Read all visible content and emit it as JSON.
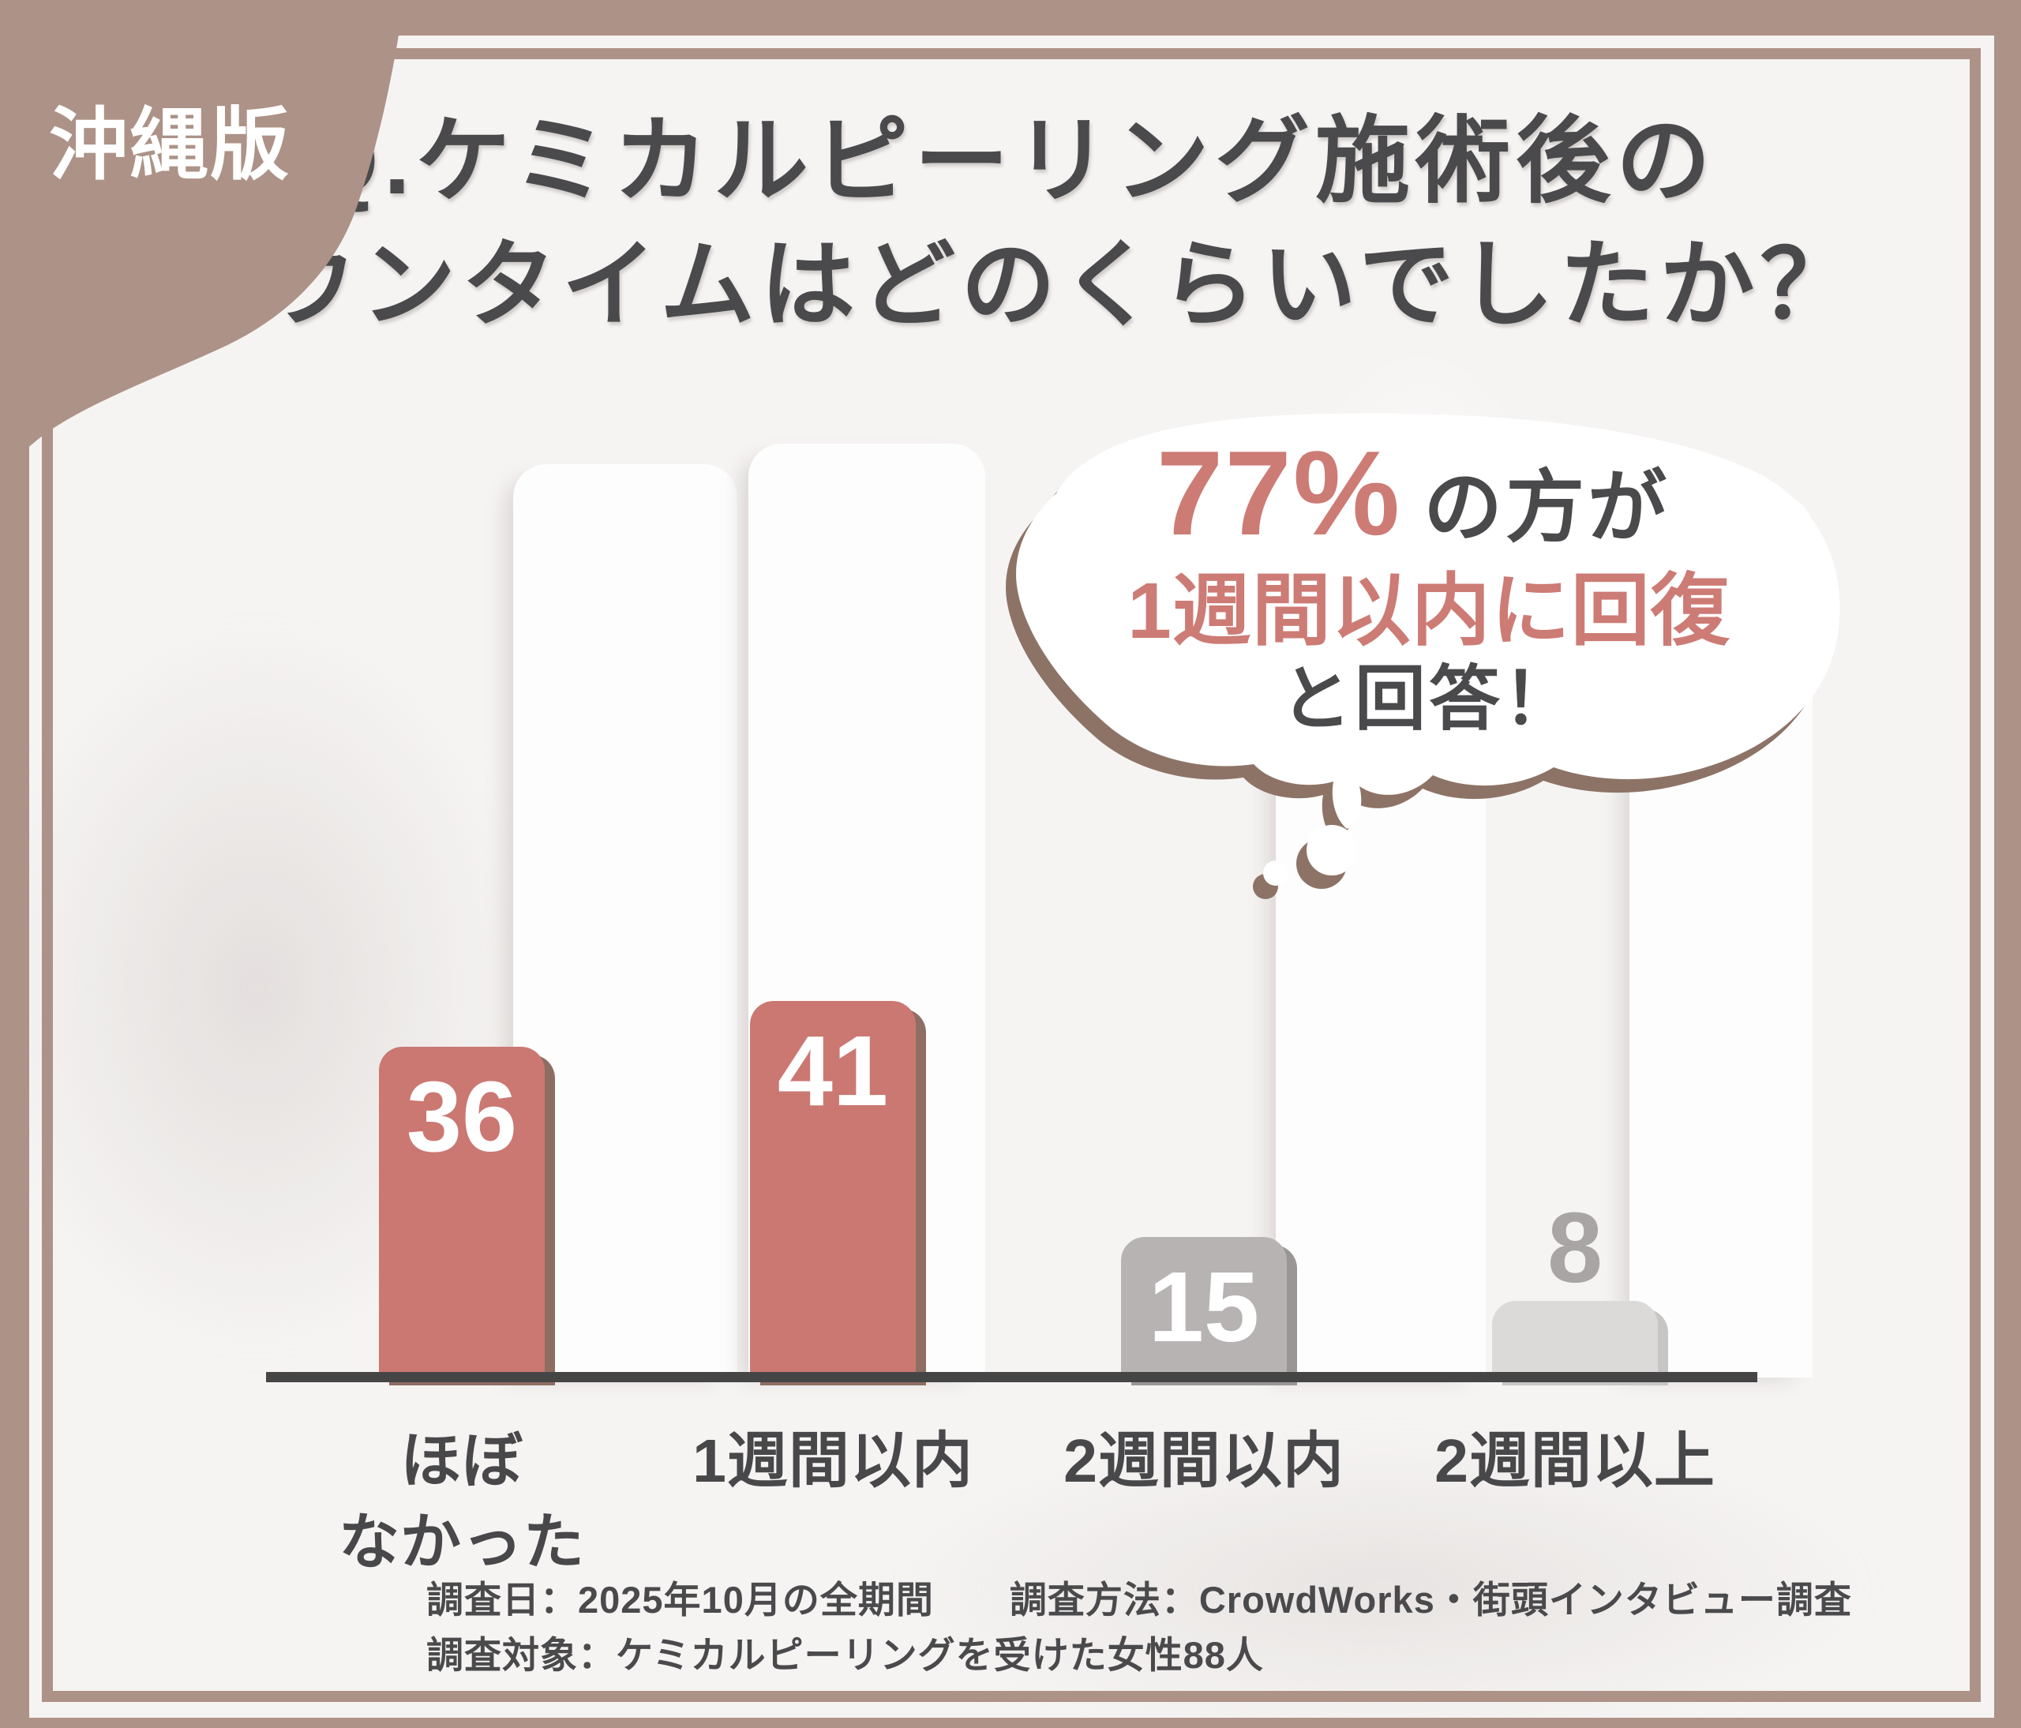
{
  "badge": {
    "label": "沖縄版"
  },
  "title": {
    "line1": "Q.ケミカルピーリング施術後の",
    "line2": "ダウンタイムはどのくらいでしたか？"
  },
  "bubble": {
    "stat": "77%",
    "stat_suffix": "の方が",
    "highlight_line": "1週間以内に回復",
    "answer_line": "と回答！"
  },
  "chart_data": {
    "type": "bar",
    "title": "Q.ケミカルピーリング施術後のダウンタイムはどのくらいでしたか？",
    "categories": [
      "ほぼ\nなかった",
      "1週間以内",
      "2週間以内",
      "2週間以上"
    ],
    "values": [
      36,
      41,
      15,
      8
    ],
    "xlabel": "",
    "ylabel": "",
    "ylim": [
      0,
      45
    ],
    "grid": false,
    "legend": "none",
    "annotation": "77%の方が1週間以内に回復と回答！",
    "bar_colors": [
      "#cb7872",
      "#cb7872",
      "#b7b3b3",
      "#dcd9d9"
    ],
    "bar_shadow_colors": [
      "#8e6d62",
      "#8e6d62",
      "#9b9696",
      "#c8c5c5"
    ],
    "value_label_colors": [
      "#ffffff",
      "#ffffff",
      "#ffffff",
      "#a9a5a5"
    ],
    "value_label_position": [
      "inside",
      "inside",
      "inside",
      "outside"
    ]
  },
  "footer": {
    "line1": "調査日：2025年10月の全期間　　調査方法：CrowdWorks・街頭インタビュー調査",
    "line2": "調査対象：ケミカルピーリングを受けた女性88人"
  },
  "colors": {
    "frame": "#ad9287",
    "background": "#f6f4f3",
    "accent_pink": "#cb7872",
    "text_dark": "#4a4a4c",
    "axis": "#454545",
    "bubble_shadow": "#8d7366",
    "track_white": "#fdfdfd"
  }
}
